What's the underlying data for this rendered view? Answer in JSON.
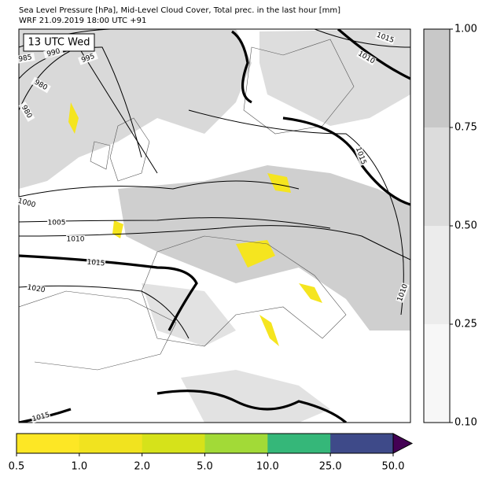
{
  "header": {
    "title": "Sea Level Pressure [hPa], Mid-Level Cloud Cover, Total prec. in the last hour [mm]",
    "subtitle": "WRF 21.09.2019 18:00 UTC +91"
  },
  "map": {
    "time_label": "13 UTC Wed",
    "isobar_labels": [
      "985",
      "990",
      "995",
      "980",
      "980",
      "1000",
      "1005",
      "1010",
      "1015",
      "1020",
      "1015",
      "1010",
      "1015",
      "1015",
      "1010"
    ]
  },
  "cloud_colorbar": {
    "ticks": [
      "1.00",
      "0.75",
      "0.50",
      "0.25",
      "0.10"
    ],
    "colors": [
      "#c8c8c8",
      "#dcdcdc",
      "#ececec",
      "#f7f7f7"
    ]
  },
  "precip_colorbar": {
    "ticks": [
      "0.5",
      "1.0",
      "2.0",
      "5.0",
      "10.0",
      "25.0",
      "50.0"
    ],
    "colors": [
      "#fde725",
      "#f1e31f",
      "#d6e21a",
      "#a2da37",
      "#35b779",
      "#3e4a89"
    ],
    "extend_color": "#440154"
  }
}
